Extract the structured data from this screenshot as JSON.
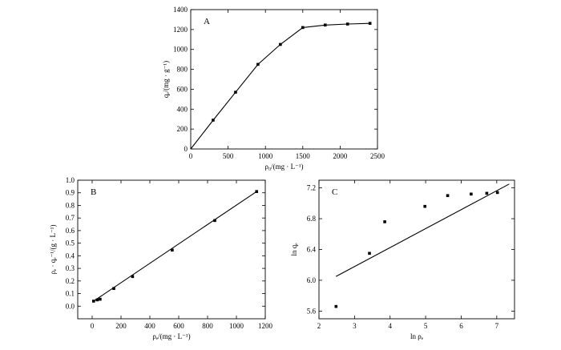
{
  "chart_data": [
    {
      "type": "line",
      "panel_label": "A",
      "xlabel": "ρ₀/(mg · L⁻¹)",
      "ylabel": "qₑ/(mg · g⁻¹)",
      "xlim": [
        0,
        2500
      ],
      "ylim": [
        0,
        1400
      ],
      "xticks": [
        0,
        500,
        1000,
        1500,
        2000,
        2500
      ],
      "yticks": [
        0,
        200,
        400,
        600,
        800,
        1000,
        1200,
        1400
      ],
      "x": [
        0,
        300,
        600,
        900,
        1200,
        1500,
        1800,
        2100,
        2400
      ],
      "y": [
        0,
        290,
        570,
        850,
        1050,
        1220,
        1245,
        1255,
        1262
      ]
    },
    {
      "type": "scatter",
      "panel_label": "B",
      "xlabel": "ρₑ/(mg · L⁻¹)",
      "ylabel": "ρₑ · qₑ⁻¹/(g · L⁻¹)",
      "xlim": [
        -100,
        1200
      ],
      "ylim": [
        -0.1,
        1.0
      ],
      "xticks": [
        0,
        200,
        400,
        600,
        800,
        1000,
        1200
      ],
      "yticks": [
        0.0,
        0.1,
        0.2,
        0.3,
        0.4,
        0.5,
        0.6,
        0.7,
        0.8,
        0.9,
        1.0
      ],
      "x": [
        10,
        35,
        55,
        150,
        280,
        555,
        850,
        1140
      ],
      "y": [
        0.04,
        0.05,
        0.055,
        0.14,
        0.235,
        0.445,
        0.68,
        0.91
      ],
      "fit_line": {
        "x": [
          10,
          1140
        ],
        "y": [
          0.04,
          0.91
        ]
      }
    },
    {
      "type": "scatter",
      "panel_label": "C",
      "xlabel": "ln ρₑ",
      "ylabel": "ln qₑ",
      "xlim": [
        2,
        7.5
      ],
      "ylim": [
        5.5,
        7.3
      ],
      "xticks": [
        2,
        3,
        4,
        5,
        6,
        7
      ],
      "yticks": [
        5.6,
        6.0,
        6.4,
        6.8,
        7.2
      ],
      "x": [
        2.48,
        3.42,
        3.85,
        4.98,
        5.62,
        6.28,
        6.72,
        7.02
      ],
      "y": [
        5.66,
        6.35,
        6.76,
        6.96,
        7.1,
        7.12,
        7.13,
        7.14
      ],
      "fit_line": {
        "x": [
          2.48,
          7.35
        ],
        "y": [
          6.05,
          7.25
        ]
      }
    }
  ]
}
